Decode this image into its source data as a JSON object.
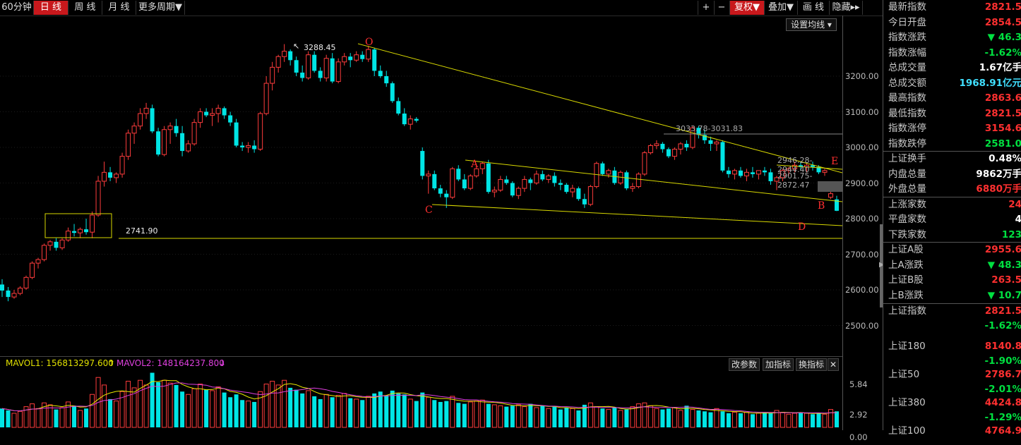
{
  "toolbar": {
    "periods": [
      {
        "label": "60分钟",
        "active": false
      },
      {
        "label": "日 线",
        "active": true
      },
      {
        "label": "周 线",
        "active": false
      },
      {
        "label": "月 线",
        "active": false
      },
      {
        "label": "更多周期▼",
        "active": false
      }
    ],
    "right_buttons": [
      {
        "label": "+",
        "name": "zoom-in-button"
      },
      {
        "label": "−",
        "name": "zoom-out-button"
      },
      {
        "label": "复权▼",
        "name": "adjust-rights-button",
        "accent": true
      },
      {
        "label": "叠加▼",
        "name": "overlay-button"
      },
      {
        "label": "画 线",
        "name": "draw-line-button"
      },
      {
        "label": "隐藏▸▸",
        "name": "hide-panel-button"
      }
    ]
  },
  "settings_label": "设置均线 ▾",
  "price_axis": [
    "3200.00",
    "3100.00",
    "3000.00",
    "2900.00",
    "2800.00",
    "2700.00",
    "2600.00",
    "2500.00"
  ],
  "volume_axis": [
    "5.84",
    "2.92",
    "0.00"
  ],
  "annotations": {
    "high_label": "3288.45",
    "support_label": "2741.90",
    "pt_o": "O",
    "pt_a": "A",
    "pt_c": "C",
    "pt_b": "B",
    "pt_d": "D",
    "pt_e": "E",
    "label_3033": "3033.78-3031.83",
    "label_2946": "2946.28-2944.40",
    "label_2901": "2901.75-2872.47"
  },
  "volume_bar": {
    "mavol1": "MAVOL1: 156813297.600",
    "mavol1_arrow": "↑",
    "mavol2": "MAVOL2: 148164237.800",
    "mavol2_arrow": "↓",
    "buttons": [
      "改参数",
      "加指标",
      "换指标"
    ],
    "close": "✕"
  },
  "colors": {
    "up": "#ff3c3c",
    "down": "#00e5e5",
    "line": "#e8e800",
    "text_red": "#ff3030",
    "text_green": "#00e040",
    "text_yellow": "#ffff00"
  },
  "quote": [
    {
      "label": "最新指数",
      "value": "2821.5",
      "color": "red"
    },
    {
      "label": "今日开盘",
      "value": "2854.5",
      "color": "red"
    },
    {
      "label": "指数涨跌",
      "value": "▼ 46.3",
      "color": "green"
    },
    {
      "label": "指数涨幅",
      "value": "-1.62%",
      "color": "green"
    },
    {
      "label": "总成交量",
      "value": "1.67亿手",
      "color": "white"
    },
    {
      "label": "总成交额",
      "value": "1968.91亿元",
      "color": "cyan"
    },
    {
      "label": "最高指数",
      "value": "2863.6",
      "color": "red"
    },
    {
      "label": "最低指数",
      "value": "2821.5",
      "color": "red"
    },
    {
      "label": "指数涨停",
      "value": "3154.6",
      "color": "red"
    },
    {
      "label": "指数跌停",
      "value": "2581.0",
      "color": "green"
    },
    {
      "label": "上证换手",
      "value": "0.48%",
      "color": "white"
    },
    {
      "label": "内盘总量",
      "value": "9862万手",
      "color": "white"
    },
    {
      "label": "外盘总量",
      "value": "6880万手",
      "color": "red"
    },
    {
      "label": "上涨家数",
      "value": "24",
      "color": "red"
    },
    {
      "label": "平盘家数",
      "value": "4",
      "color": "white"
    },
    {
      "label": "下跌家数",
      "value": "123",
      "color": "green"
    },
    {
      "label": "上证A股",
      "value": "2955.6",
      "color": "red"
    },
    {
      "label": "上A涨跌",
      "value": "▼ 48.3",
      "color": "green"
    },
    {
      "label": "上证B股",
      "value": "263.5",
      "color": "red"
    },
    {
      "label": "上B涨跌",
      "value": "▼ 10.7",
      "color": "green"
    }
  ],
  "indices": [
    {
      "label": "上证指数",
      "value": "2821.5",
      "change": "-1.62%"
    },
    {
      "label": "上证180",
      "value": "8140.8",
      "change": "-1.90%"
    },
    {
      "label": "上证50",
      "value": "2786.7",
      "change": "-2.01%"
    },
    {
      "label": "上证380",
      "value": "4424.8",
      "change": "-1.29%"
    },
    {
      "label": "上证100",
      "value": "4764.9",
      "change": ""
    }
  ],
  "chart_data": {
    "type": "candlestick",
    "title": "",
    "ylabel": "",
    "ylim": [
      2440,
      3340
    ],
    "ohlc": [
      [
        2615,
        2630,
        2580,
        2598
      ],
      [
        2598,
        2608,
        2568,
        2580
      ],
      [
        2580,
        2600,
        2575,
        2590
      ],
      [
        2590,
        2610,
        2585,
        2605
      ],
      [
        2605,
        2640,
        2600,
        2635
      ],
      [
        2635,
        2680,
        2630,
        2675
      ],
      [
        2675,
        2690,
        2660,
        2685
      ],
      [
        2685,
        2730,
        2680,
        2725
      ],
      [
        2725,
        2740,
        2710,
        2735
      ],
      [
        2735,
        2745,
        2710,
        2718
      ],
      [
        2718,
        2745,
        2712,
        2740
      ],
      [
        2740,
        2775,
        2735,
        2765
      ],
      [
        2765,
        2785,
        2750,
        2760
      ],
      [
        2760,
        2775,
        2745,
        2770
      ],
      [
        2770,
        2800,
        2755,
        2762
      ],
      [
        2762,
        2820,
        2745,
        2810
      ],
      [
        2810,
        2920,
        2805,
        2905
      ],
      [
        2905,
        2960,
        2890,
        2930
      ],
      [
        2930,
        2945,
        2905,
        2915
      ],
      [
        2915,
        2930,
        2900,
        2925
      ],
      [
        2925,
        2985,
        2915,
        2975
      ],
      [
        2975,
        3050,
        2965,
        3040
      ],
      [
        3040,
        3070,
        3010,
        3060
      ],
      [
        3060,
        3110,
        3050,
        3095
      ],
      [
        3095,
        3125,
        3080,
        3110
      ],
      [
        3110,
        3120,
        3040,
        3045
      ],
      [
        3045,
        3055,
        2975,
        2980
      ],
      [
        2980,
        3060,
        2975,
        3050
      ],
      [
        3050,
        3070,
        3010,
        3060
      ],
      [
        3060,
        3080,
        3030,
        3040
      ],
      [
        3040,
        3060,
        2975,
        2990
      ],
      [
        2990,
        3020,
        2985,
        3010
      ],
      [
        3010,
        3080,
        3005,
        3070
      ],
      [
        3070,
        3110,
        3055,
        3100
      ],
      [
        3100,
        3110,
        3085,
        3090
      ],
      [
        3090,
        3110,
        3060,
        3095
      ],
      [
        3095,
        3120,
        3070,
        3110
      ],
      [
        3110,
        3115,
        3080,
        3090
      ],
      [
        3090,
        3100,
        3060,
        3070
      ],
      [
        3070,
        3080,
        3000,
        3005
      ],
      [
        3005,
        3015,
        2990,
        3000
      ],
      [
        3000,
        3015,
        2985,
        3005
      ],
      [
        3005,
        3020,
        2985,
        2995
      ],
      [
        2995,
        3100,
        2990,
        3095
      ],
      [
        3095,
        3200,
        3090,
        3180
      ],
      [
        3180,
        3240,
        3160,
        3225
      ],
      [
        3225,
        3260,
        3210,
        3255
      ],
      [
        3255,
        3290,
        3240,
        3270
      ],
      [
        3270,
        3275,
        3230,
        3245
      ],
      [
        3245,
        3255,
        3200,
        3210
      ],
      [
        3210,
        3230,
        3185,
        3195
      ],
      [
        3195,
        3270,
        3190,
        3260
      ],
      [
        3260,
        3270,
        3210,
        3215
      ],
      [
        3215,
        3225,
        3185,
        3195
      ],
      [
        3195,
        3260,
        3185,
        3250
      ],
      [
        3250,
        3265,
        3180,
        3185
      ],
      [
        3185,
        3250,
        3180,
        3240
      ],
      [
        3240,
        3265,
        3230,
        3255
      ],
      [
        3255,
        3265,
        3225,
        3245
      ],
      [
        3245,
        3270,
        3240,
        3260
      ],
      [
        3260,
        3270,
        3240,
        3248
      ],
      [
        3248,
        3285,
        3240,
        3275
      ],
      [
        3275,
        3280,
        3200,
        3215
      ],
      [
        3215,
        3230,
        3195,
        3200
      ],
      [
        3200,
        3215,
        3170,
        3180
      ],
      [
        3180,
        3185,
        3125,
        3130
      ],
      [
        3130,
        3140,
        3090,
        3095
      ],
      [
        3095,
        3110,
        3060,
        3065
      ],
      [
        3065,
        3090,
        3050,
        3080
      ],
      [
        3080,
        3085,
        3070,
        3075
      ],
      [
        2990,
        3000,
        2910,
        2920
      ],
      [
        2920,
        2935,
        2870,
        2925
      ],
      [
        2925,
        2935,
        2880,
        2885
      ],
      [
        2885,
        2895,
        2860,
        2870
      ],
      [
        2870,
        2880,
        2830,
        2860
      ],
      [
        2860,
        2945,
        2855,
        2940
      ],
      [
        2940,
        2950,
        2905,
        2910
      ],
      [
        2910,
        2925,
        2880,
        2885
      ],
      [
        2885,
        2925,
        2880,
        2920
      ],
      [
        2920,
        2945,
        2915,
        2940
      ],
      [
        2940,
        2960,
        2925,
        2955
      ],
      [
        2955,
        2965,
        2870,
        2875
      ],
      [
        2875,
        2890,
        2860,
        2880
      ],
      [
        2880,
        2920,
        2875,
        2910
      ],
      [
        2910,
        2920,
        2895,
        2900
      ],
      [
        2900,
        2905,
        2860,
        2865
      ],
      [
        2865,
        2890,
        2855,
        2885
      ],
      [
        2885,
        2920,
        2875,
        2910
      ],
      [
        2910,
        2915,
        2880,
        2900
      ],
      [
        2900,
        2935,
        2895,
        2925
      ],
      [
        2925,
        2935,
        2905,
        2910
      ],
      [
        2910,
        2925,
        2900,
        2920
      ],
      [
        2920,
        2930,
        2890,
        2900
      ],
      [
        2900,
        2910,
        2880,
        2895
      ],
      [
        2895,
        2900,
        2870,
        2875
      ],
      [
        2875,
        2895,
        2860,
        2885
      ],
      [
        2885,
        2890,
        2850,
        2855
      ],
      [
        2855,
        2870,
        2830,
        2840
      ],
      [
        2840,
        2895,
        2835,
        2890
      ],
      [
        2890,
        2960,
        2885,
        2955
      ],
      [
        2955,
        2960,
        2920,
        2925
      ],
      [
        2925,
        2940,
        2915,
        2935
      ],
      [
        2935,
        2945,
        2895,
        2900
      ],
      [
        2900,
        2935,
        2895,
        2930
      ],
      [
        2930,
        2935,
        2880,
        2885
      ],
      [
        2885,
        2900,
        2875,
        2890
      ],
      [
        2890,
        2930,
        2885,
        2925
      ],
      [
        2925,
        2990,
        2920,
        2985
      ],
      [
        2985,
        3010,
        2980,
        3005
      ],
      [
        3005,
        3020,
        2995,
        3010
      ],
      [
        3010,
        3015,
        2985,
        2995
      ],
      [
        2995,
        3000,
        2970,
        2975
      ],
      [
        2975,
        3000,
        2965,
        2995
      ],
      [
        2995,
        3015,
        2980,
        3010
      ],
      [
        3010,
        3020,
        2990,
        3000
      ],
      [
        3000,
        3060,
        2995,
        3055
      ],
      [
        3055,
        3060,
        3025,
        3035
      ],
      [
        3035,
        3050,
        3010,
        3020
      ],
      [
        3020,
        3030,
        2990,
        3010
      ],
      [
        3010,
        3020,
        2990,
        3015
      ],
      [
        3015,
        3020,
        2930,
        2935
      ],
      [
        2935,
        2945,
        2915,
        2925
      ],
      [
        2925,
        2940,
        2910,
        2935
      ],
      [
        2935,
        2945,
        2915,
        2920
      ],
      [
        2920,
        2940,
        2905,
        2930
      ],
      [
        2930,
        2945,
        2915,
        2925
      ],
      [
        2925,
        2935,
        2910,
        2935
      ],
      [
        2935,
        2945,
        2920,
        2930
      ],
      [
        2930,
        2940,
        2895,
        2905
      ],
      [
        2905,
        2920,
        2880,
        2915
      ],
      [
        2915,
        2940,
        2905,
        2935
      ],
      [
        2935,
        2945,
        2920,
        2940
      ],
      [
        2940,
        2960,
        2930,
        2950
      ],
      [
        2950,
        2960,
        2935,
        2945
      ],
      [
        2945,
        2955,
        2930,
        2950
      ],
      [
        2950,
        2960,
        2935,
        2945
      ],
      [
        2945,
        2950,
        2925,
        2930
      ],
      [
        2930,
        2940,
        2920,
        2935
      ],
      [
        2860,
        2880,
        2855,
        2870
      ],
      [
        2854,
        2864,
        2821,
        2822
      ]
    ],
    "volume": [
      2.0,
      1.8,
      1.5,
      1.7,
      2.2,
      2.5,
      2.0,
      2.6,
      2.4,
      1.9,
      2.1,
      2.7,
      2.3,
      1.8,
      2.0,
      3.5,
      5.3,
      4.5,
      3.0,
      2.8,
      3.8,
      4.9,
      4.2,
      5.0,
      4.5,
      5.8,
      4.8,
      5.0,
      4.7,
      4.5,
      3.8,
      3.5,
      4.1,
      4.6,
      4.0,
      3.9,
      4.3,
      3.7,
      3.2,
      3.5,
      2.9,
      2.8,
      2.7,
      3.8,
      4.6,
      4.9,
      4.5,
      5.0,
      4.2,
      4.0,
      3.6,
      3.9,
      3.3,
      3.0,
      3.5,
      3.2,
      3.4,
      3.6,
      3.1,
      3.0,
      2.9,
      3.3,
      3.6,
      3.8,
      3.4,
      3.9,
      3.6,
      3.5,
      3.0,
      2.8,
      3.7,
      3.2,
      2.9,
      2.7,
      2.8,
      3.3,
      2.6,
      2.5,
      2.7,
      2.8,
      2.9,
      2.5,
      2.4,
      2.3,
      2.2,
      2.3,
      2.4,
      2.2,
      2.5,
      2.1,
      2.3,
      2.0,
      2.2,
      1.9,
      2.1,
      2.0,
      1.8,
      2.4,
      2.6,
      2.2,
      2.0,
      1.9,
      2.1,
      1.8,
      1.9,
      2.2,
      2.5,
      2.6,
      2.3,
      2.0,
      1.9,
      2.0,
      2.1,
      1.8,
      2.3,
      1.9,
      1.8,
      1.7,
      1.6,
      2.0,
      1.7,
      1.5,
      1.6,
      1.5,
      1.6,
      1.4,
      1.5,
      1.6,
      1.5,
      1.8,
      1.6,
      1.4,
      1.5,
      1.6,
      1.5,
      1.4,
      1.5,
      1.4,
      1.9,
      1.7
    ]
  }
}
